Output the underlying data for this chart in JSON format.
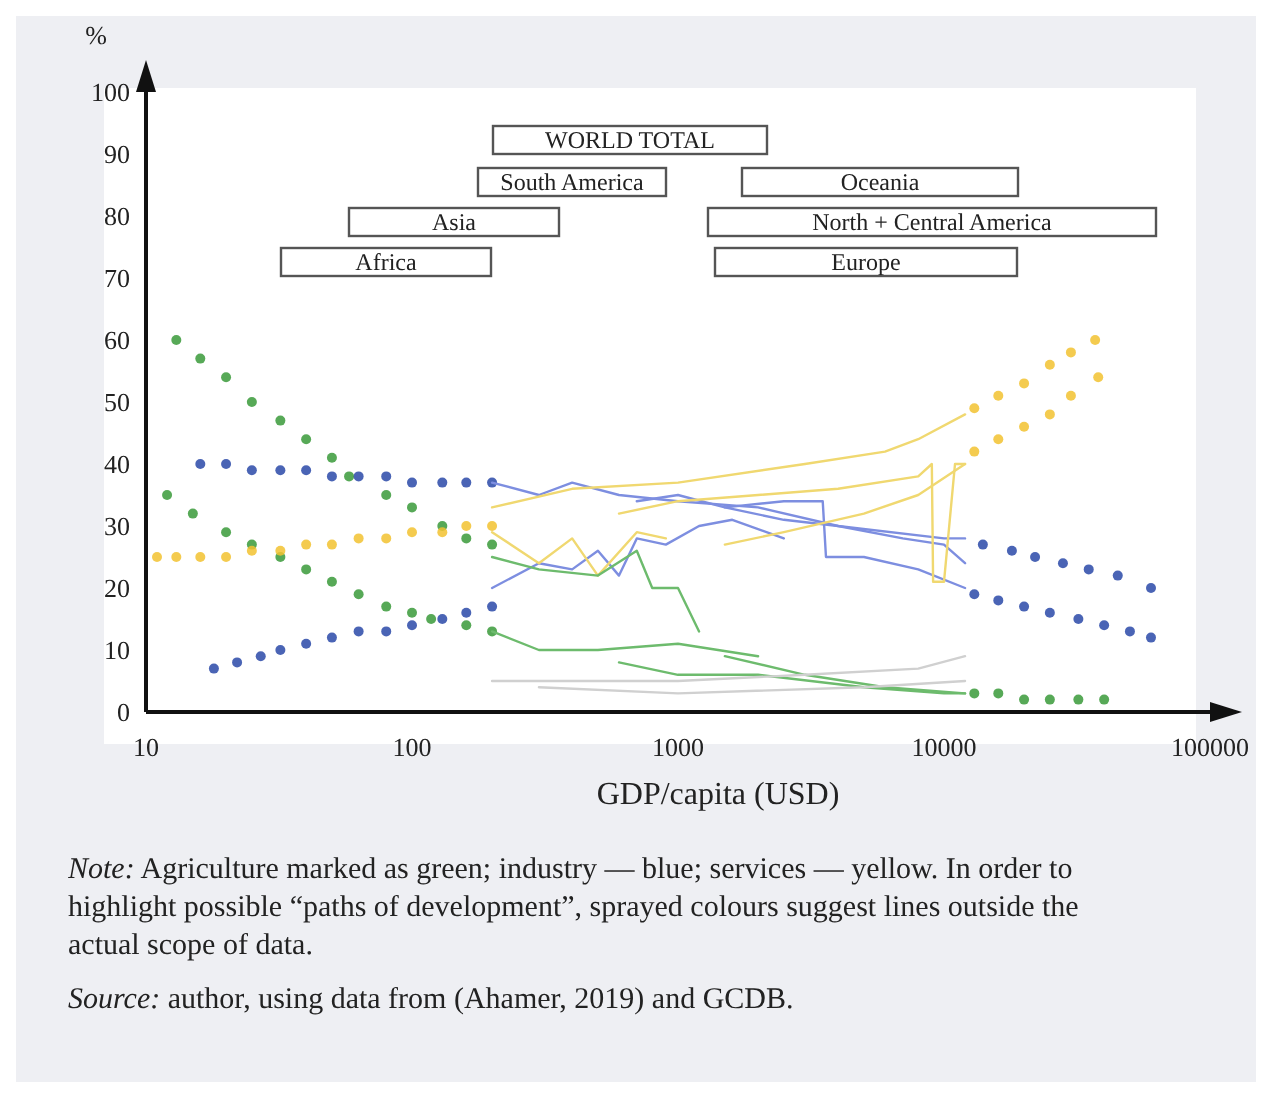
{
  "chart_data": {
    "type": "line",
    "xlabel": "GDP/capita (USD)",
    "ylabel": "%",
    "log": "x",
    "xlim": [
      10,
      100000
    ],
    "xticks": [
      10,
      100,
      1000,
      10000,
      100000
    ],
    "ylim": [
      0,
      100
    ],
    "yticks": [
      0,
      10,
      20,
      30,
      40,
      50,
      60,
      70,
      80,
      90,
      100
    ],
    "series": [
      {
        "type": "scatter",
        "marker": "circle",
        "color": "#3a9a3a",
        "x": [
          13,
          16,
          20,
          25,
          32,
          40,
          50,
          58,
          80,
          100,
          130,
          160,
          200
        ],
        "values": [
          60,
          57,
          54,
          50,
          47,
          44,
          41,
          38,
          35,
          33,
          30,
          28,
          27
        ]
      },
      {
        "type": "scatter",
        "marker": "circle",
        "color": "#3a9a3a",
        "x": [
          12,
          15,
          20,
          25,
          32,
          40,
          50,
          63,
          80,
          100,
          118,
          160,
          200
        ],
        "values": [
          35,
          32,
          29,
          27,
          25,
          23,
          21,
          19,
          17,
          16,
          15,
          14,
          13
        ]
      },
      {
        "type": "scatter",
        "marker": "circle",
        "color": "#2a49a8",
        "x": [
          16,
          20,
          25,
          32,
          40,
          50,
          63,
          80,
          100,
          130,
          160,
          200
        ],
        "values": [
          40,
          40,
          39,
          39,
          39,
          38,
          38,
          38,
          37,
          37,
          37,
          37
        ]
      },
      {
        "type": "scatter",
        "marker": "circle",
        "color": "#2a49a8",
        "x": [
          18,
          22,
          27,
          32,
          40,
          50,
          63,
          80,
          100,
          130,
          160,
          200
        ],
        "values": [
          7,
          8,
          9,
          10,
          11,
          12,
          13,
          13,
          14,
          15,
          16,
          17
        ]
      },
      {
        "type": "scatter",
        "marker": "circle",
        "color": "#f2c230",
        "x": [
          11,
          13,
          16,
          20,
          25,
          32,
          40,
          50,
          63,
          80,
          100,
          130,
          160,
          200
        ],
        "values": [
          25,
          25,
          25,
          25,
          26,
          26,
          27,
          27,
          28,
          28,
          29,
          29,
          30,
          30
        ]
      },
      {
        "type": "scatter",
        "marker": "circle",
        "color": "#f2c230",
        "x": [
          13000,
          16000,
          20000,
          25000,
          30000,
          37000
        ],
        "values": [
          49,
          51,
          53,
          56,
          58,
          60
        ]
      },
      {
        "type": "scatter",
        "marker": "circle",
        "color": "#f2c230",
        "x": [
          13000,
          16000,
          20000,
          25000,
          30000,
          38000
        ],
        "values": [
          42,
          44,
          46,
          48,
          51,
          54
        ]
      },
      {
        "type": "scatter",
        "marker": "circle",
        "color": "#2a49a8",
        "x": [
          14000,
          18000,
          22000,
          28000,
          35000,
          45000,
          60000
        ],
        "values": [
          27,
          26,
          25,
          24,
          23,
          22,
          20
        ]
      },
      {
        "type": "scatter",
        "marker": "circle",
        "color": "#2a49a8",
        "x": [
          13000,
          16000,
          20000,
          25000,
          32000,
          40000,
          50000,
          60000
        ],
        "values": [
          19,
          18,
          17,
          16,
          15,
          14,
          13,
          12
        ]
      },
      {
        "type": "scatter",
        "marker": "circle",
        "color": "#3a9a3a",
        "x": [
          13000,
          16000,
          20000,
          25000,
          32000,
          40000
        ],
        "values": [
          3,
          3,
          2,
          2,
          2,
          2
        ]
      },
      {
        "color": "#7d8ee0",
        "x": [
          200,
          300,
          400,
          600,
          1000,
          2000,
          4000,
          10000,
          12000
        ],
        "values": [
          37,
          35,
          37,
          35,
          34,
          33,
          30,
          28,
          28
        ]
      },
      {
        "color": "#7d8ee0",
        "x": [
          200,
          300,
          400,
          500,
          600,
          700,
          900,
          1200,
          1600,
          2500
        ],
        "values": [
          20,
          24,
          23,
          26,
          22,
          28,
          27,
          30,
          31,
          28
        ]
      },
      {
        "color": "#7d8ee0",
        "x": [
          700,
          1000,
          1500,
          2500,
          3500,
          3600,
          5000,
          8000,
          12000
        ],
        "values": [
          34,
          35,
          33,
          34,
          34,
          25,
          25,
          23,
          20
        ]
      },
      {
        "color": "#7d8ee0",
        "x": [
          1500,
          2500,
          4000,
          7000,
          10000,
          12000
        ],
        "values": [
          33,
          31,
          30,
          28,
          27,
          24
        ]
      },
      {
        "color": "#f0d870",
        "x": [
          200,
          400,
          1000,
          3000,
          6000,
          8000,
          12000
        ],
        "values": [
          33,
          36,
          37,
          40,
          42,
          44,
          48
        ]
      },
      {
        "color": "#f0d870",
        "x": [
          600,
          1000,
          2000,
          4000,
          8000,
          9000,
          9100,
          10000,
          11000,
          12000
        ],
        "values": [
          32,
          34,
          35,
          36,
          38,
          40,
          21,
          21,
          40,
          40
        ]
      },
      {
        "color": "#f0d870",
        "x": [
          200,
          300,
          400,
          500,
          700,
          900
        ],
        "values": [
          29,
          24,
          28,
          22,
          29,
          28
        ]
      },
      {
        "color": "#f0d870",
        "x": [
          1500,
          2500,
          5000,
          8000,
          12000
        ],
        "values": [
          27,
          29,
          32,
          35,
          40
        ]
      },
      {
        "color": "#6dbb6d",
        "x": [
          200,
          300,
          500,
          700,
          800,
          1000,
          1200
        ],
        "values": [
          25,
          23,
          22,
          26,
          20,
          20,
          13
        ]
      },
      {
        "color": "#6dbb6d",
        "x": [
          200,
          300,
          500,
          1000,
          2000
        ],
        "values": [
          13,
          10,
          10,
          11,
          9
        ]
      },
      {
        "color": "#6dbb6d",
        "x": [
          600,
          1000,
          2000,
          5000,
          10000,
          12000
        ],
        "values": [
          8,
          6,
          6,
          4,
          3,
          3
        ]
      },
      {
        "color": "#6dbb6d",
        "x": [
          1500,
          3000,
          6000,
          12000
        ],
        "values": [
          9,
          6,
          4,
          3
        ]
      },
      {
        "color": "#d0d0d0",
        "x": [
          200,
          500,
          1000,
          3000,
          8000,
          12000
        ],
        "values": [
          5,
          5,
          5,
          6,
          7,
          9
        ]
      },
      {
        "color": "#d0d0d0",
        "x": [
          300,
          1000,
          5000,
          12000
        ],
        "values": [
          4,
          3,
          4,
          5
        ]
      }
    ],
    "annotations": [
      "WORLD TOTAL",
      "South America",
      "Oceania",
      "Asia",
      "North + Central America",
      "Africa",
      "Europe",
      "Note: Agriculture marked as green; industry — blue; services — yellow. In order to highlight possible “paths of development”, sprayed colours suggest lines outside the actual scope of data.",
      "Source: author, using data from (Ahamer, 2019) and GCDB."
    ]
  }
}
